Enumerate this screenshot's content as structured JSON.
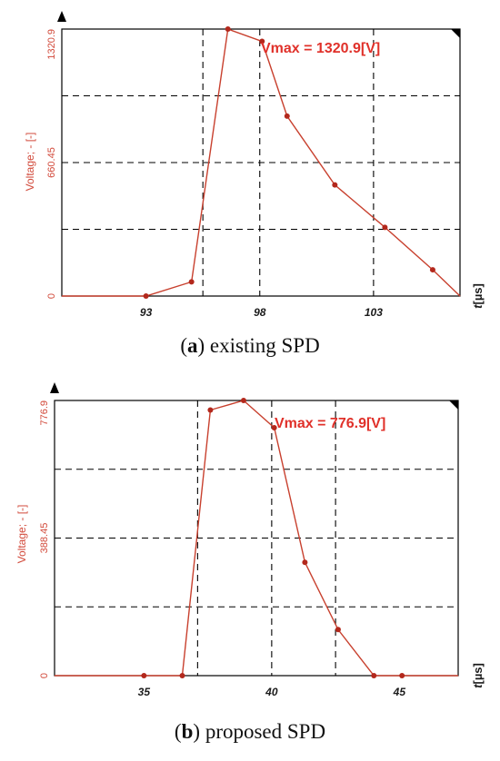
{
  "colors": {
    "series": "#c8402e",
    "marker": "#b3281c",
    "axis": "#000000",
    "grid": "#000000",
    "ytext": "#d24a3b",
    "vmax": "#e0312a"
  },
  "chart_data": [
    {
      "type": "line",
      "panel": "a",
      "caption_letter": "a",
      "caption_text": "existing SPD",
      "ylabel": "Voltage; - [-]",
      "xunit_italic": "t",
      "xunit_rest": "[µs]",
      "annotation": "Vmax = 1320.9[V]",
      "xlim": [
        89.3,
        106.8
      ],
      "ylim": [
        0,
        1320.9
      ],
      "xticks": [
        93,
        98,
        103
      ],
      "xtick_labels": [
        "93",
        "98",
        "103"
      ],
      "yticks": [
        0,
        660.45,
        1320.9
      ],
      "ytick_labels": [
        "0",
        "660.45",
        "1320.9"
      ],
      "xgrid": [
        95.5,
        98,
        103
      ],
      "ygrid": [
        330.2,
        660.45,
        990.7,
        1320.9
      ],
      "series": [
        {
          "x": [
            89.3,
            93,
            95,
            96.6,
            98.1,
            99.2,
            101.3,
            103.5,
            105.6,
            106.8
          ],
          "y": [
            0,
            0,
            70,
            1320.9,
            1260,
            890,
            550,
            340,
            130,
            0
          ]
        }
      ],
      "series_display_x": [
        89.3,
        93,
        95,
        96.6,
        98.1,
        99.2,
        101.3,
        103.5,
        105.6,
        106.8
      ]
    },
    {
      "type": "line",
      "panel": "b",
      "caption_letter": "b",
      "caption_text": "proposed SPD",
      "ylabel": "Voltage; - [-]",
      "xunit_italic": "t",
      "xunit_rest": "[µs]",
      "annotation": "Vmax = 776.9[V]",
      "xlim": [
        31.5,
        47.3
      ],
      "ylim": [
        0,
        776.9
      ],
      "xticks": [
        35,
        40,
        45
      ],
      "xtick_labels": [
        "35",
        "40",
        "45"
      ],
      "yticks": [
        0,
        388.45,
        776.9
      ],
      "ytick_labels": [
        "0",
        "388.45",
        "776.9"
      ],
      "xgrid": [
        37.1,
        40,
        42.5
      ],
      "ygrid": [
        194.2,
        388.45,
        582.7,
        776.9
      ],
      "series": [
        {
          "x": [
            31.5,
            35,
            36.5,
            37.6,
            38.9,
            40.1,
            41.3,
            42.6,
            44.0,
            45.1,
            47.3
          ],
          "y": [
            0,
            0,
            0,
            750,
            776.9,
            700,
            320,
            130,
            0,
            0,
            0
          ]
        }
      ]
    }
  ]
}
